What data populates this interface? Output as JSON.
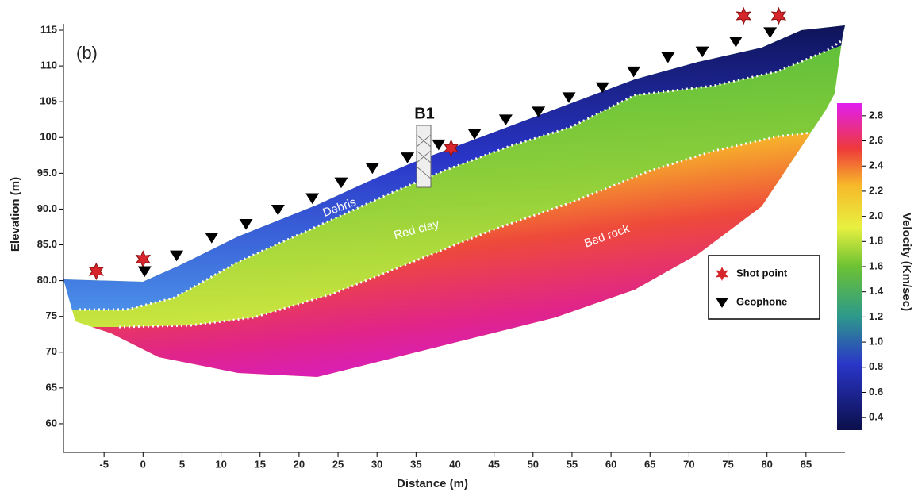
{
  "chart_data": {
    "type": "scatter",
    "panel_label": "(b)",
    "x_label": "Distance (m)",
    "y_label": "Elevation (m)",
    "xlim": [
      -10,
      90
    ],
    "xticks": [
      -5,
      0,
      5,
      10,
      15,
      20,
      25,
      30,
      35,
      40,
      45,
      50,
      55,
      60,
      65,
      70,
      75,
      80,
      85
    ],
    "ylim": [
      56,
      116
    ],
    "yticks": [
      60,
      65,
      70,
      75,
      {
        "value": 80,
        "label": "80.0"
      },
      {
        "value": 85,
        "label": "85.0"
      },
      {
        "value": 90,
        "label": "90.0"
      },
      {
        "value": 95,
        "label": "95.0"
      },
      100,
      105,
      110,
      115
    ],
    "series": [
      {
        "name": "Shot point",
        "color": "#d7262b",
        "marker": "star",
        "x": [
          -6,
          0,
          39.5,
          77,
          81.5
        ],
        "values": [
          81.3,
          83,
          98.5,
          117,
          117
        ]
      },
      {
        "name": "Geophone",
        "color": "#000000",
        "marker": "triangle",
        "x": [
          0.2,
          4.3,
          8.8,
          13.2,
          17.3,
          21.7,
          25.4,
          29.4,
          33.9,
          37.9,
          42.5,
          46.5,
          50.7,
          54.6,
          58.9,
          62.9,
          67.3,
          71.7,
          76.0,
          80.4
        ],
        "values": [
          80.5,
          82.7,
          85.2,
          87.1,
          89.1,
          90.7,
          92.9,
          94.9,
          96.4,
          98.2,
          99.7,
          101.7,
          102.8,
          104.8,
          106.2,
          108.4,
          110.4,
          111.2,
          112.6,
          113.9
        ]
      }
    ],
    "annotations": [
      "Debris",
      "Red clay",
      "Bed rock",
      "B1"
    ],
    "colorbar": {
      "label": "Velocity (Km/sec)",
      "lim": [
        0.3,
        2.9
      ],
      "ticks": [
        0.4,
        0.6,
        0.8,
        {
          "value": 1.0,
          "label": "1.0"
        },
        1.2,
        1.4,
        1.6,
        1.8,
        {
          "value": 2.0,
          "label": "2.0"
        },
        2.2,
        2.4,
        2.6,
        2.8
      ]
    }
  }
}
